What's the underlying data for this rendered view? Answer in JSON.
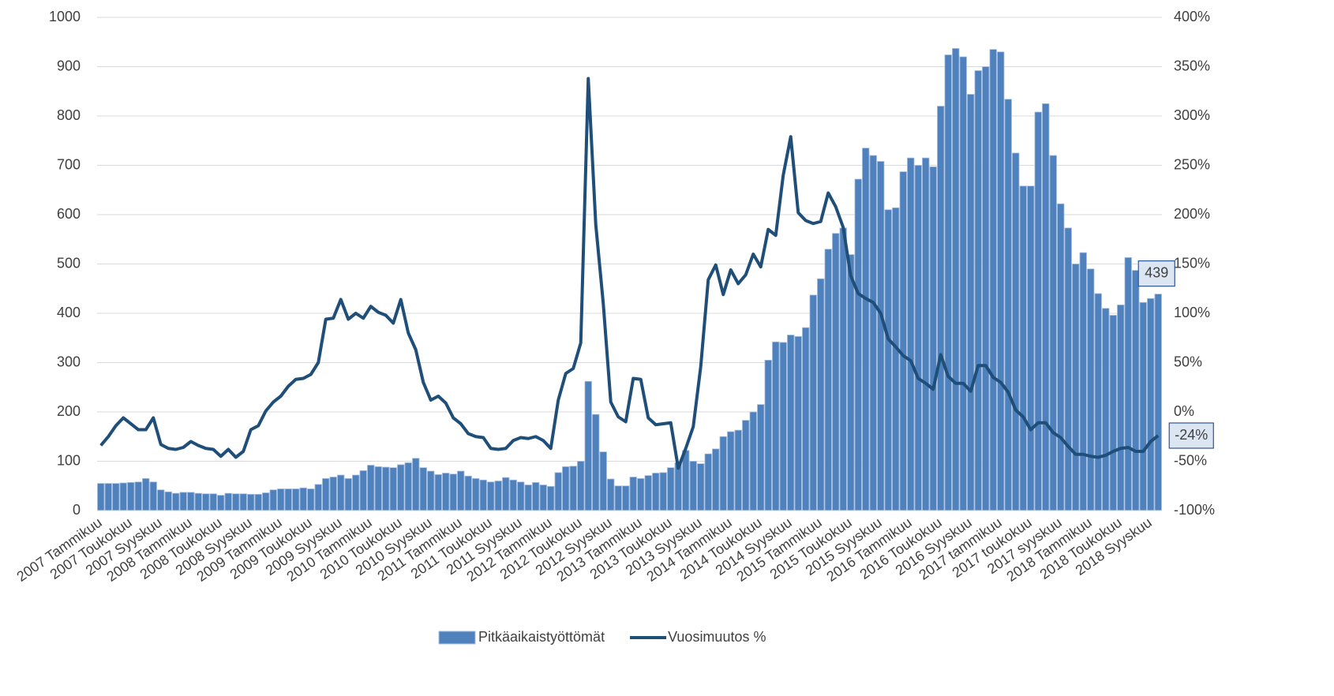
{
  "chart_data": {
    "type": "bar-line",
    "categories": [
      "2007 Tammikuu",
      null,
      null,
      null,
      "2007 Toukokuu",
      null,
      null,
      null,
      "2007 Syyskuu",
      null,
      null,
      null,
      "2008 Tammikuu",
      null,
      null,
      null,
      "2008 Toukokuu",
      null,
      null,
      null,
      "2008 Syyskuu",
      null,
      null,
      null,
      "2009 Tammikuu",
      null,
      null,
      null,
      "2009 Toukokuu",
      null,
      null,
      null,
      "2009 Syyskuu",
      null,
      null,
      null,
      "2010 Tammikuu",
      null,
      null,
      null,
      "2010 Toukokuu",
      null,
      null,
      null,
      "2010 Syyskuu",
      null,
      null,
      null,
      "2011 Tammikuu",
      null,
      null,
      null,
      "2011 Toukokuu",
      null,
      null,
      null,
      "2011 Syyskuu",
      null,
      null,
      null,
      "2012 Tammikuu",
      null,
      null,
      null,
      "2012 Toukokuu",
      null,
      null,
      null,
      "2012 Syyskuu",
      null,
      null,
      null,
      "2013 Tammikuu",
      null,
      null,
      null,
      "2013 Toukokuu",
      null,
      null,
      null,
      "2013 Syyskuu",
      null,
      null,
      null,
      "2014 Tammikuu",
      null,
      null,
      null,
      "2014 Toukokuu",
      null,
      null,
      null,
      "2014 Syyskuu",
      null,
      null,
      null,
      "2015 Tammikuu",
      null,
      null,
      null,
      "2015 Toukokuu",
      null,
      null,
      null,
      "2015 Syyskuu",
      null,
      null,
      null,
      "2016 Tammikuu",
      null,
      null,
      null,
      "2016 Toukokuu",
      null,
      null,
      null,
      "2016 Syyskuu",
      null,
      null,
      null,
      "2017 tammikuu",
      null,
      null,
      null,
      "2017 toukokuu",
      null,
      null,
      null,
      "2017 syyskuu",
      null,
      null,
      null,
      "2018 Tammikuu",
      null,
      null,
      null,
      "2018 Toukokuu",
      null,
      null,
      null,
      "2018 Syyskuu",
      null
    ],
    "series": [
      {
        "name": "Pitkäaikaistyöttömät",
        "type": "bar",
        "color": "#4f81bd",
        "values": [
          55,
          55,
          55,
          56,
          57,
          58,
          65,
          58,
          42,
          38,
          35,
          37,
          37,
          35,
          34,
          34,
          31,
          35,
          34,
          34,
          33,
          33,
          36,
          42,
          44,
          44,
          44,
          46,
          44,
          53,
          65,
          68,
          72,
          65,
          72,
          81,
          92,
          89,
          88,
          87,
          93,
          97,
          106,
          87,
          80,
          73,
          76,
          74,
          80,
          70,
          65,
          62,
          58,
          60,
          67,
          62,
          58,
          52,
          57,
          52,
          49,
          77,
          89,
          90,
          100,
          262,
          195,
          119,
          64,
          50,
          50,
          68,
          65,
          71,
          76,
          77,
          87,
          97,
          122,
          100,
          95,
          115,
          125,
          150,
          160,
          163,
          183,
          200,
          215,
          305,
          342,
          341,
          356,
          353,
          371,
          437,
          470,
          530,
          562,
          573,
          519,
          672,
          735,
          720,
          708,
          610,
          614,
          687,
          715,
          700,
          715,
          697,
          820,
          924,
          937,
          920,
          844,
          892,
          900,
          935,
          930,
          834,
          725,
          658,
          658,
          808,
          825,
          720,
          622,
          573,
          500,
          523,
          490,
          440,
          410,
          396,
          417,
          513,
          487,
          422,
          430,
          439
        ],
        "value_labels": {
          "141": "439"
        }
      },
      {
        "name": "Vuosimuutos %",
        "type": "line",
        "axis": "y2",
        "color": "#1f4e79",
        "values": [
          -34,
          -25,
          -14,
          -6,
          -12,
          -18,
          -18,
          -6,
          -33,
          -37,
          -38,
          -36,
          -30,
          -34,
          -37,
          -38,
          -45,
          -38,
          -46,
          -40,
          -18,
          -14,
          1,
          10,
          16,
          26,
          33,
          34,
          38,
          50,
          94,
          95,
          114,
          94,
          100,
          95,
          107,
          101,
          98,
          90,
          114,
          80,
          63,
          30,
          12,
          16,
          9,
          -6,
          -12,
          -22,
          -25,
          -26,
          -37,
          -38,
          -37,
          -29,
          -26,
          -27,
          -25,
          -29,
          -37,
          12,
          39,
          44,
          70,
          338,
          190,
          110,
          10,
          -5,
          -10,
          34,
          33,
          -6,
          -13,
          -12,
          -11,
          -57,
          -37,
          -15,
          46,
          134,
          149,
          119,
          144,
          130,
          139,
          160,
          147,
          185,
          179,
          240,
          279,
          202,
          194,
          191,
          193,
          222,
          208,
          187,
          138,
          120,
          115,
          111,
          100,
          74,
          66,
          57,
          52,
          34,
          29,
          23,
          58,
          36,
          29,
          29,
          21,
          47,
          47,
          35,
          30,
          20,
          2,
          -5,
          -18,
          -11,
          -11,
          -21,
          -26,
          -35,
          -43,
          -43,
          -45,
          -46,
          -44,
          -40,
          -37,
          -36,
          -40,
          -40,
          -30,
          -24
        ],
        "value_labels": {
          "141": "-24%"
        }
      }
    ],
    "ylim": [
      0,
      1000
    ],
    "yticks": [
      0,
      100,
      200,
      300,
      400,
      500,
      600,
      700,
      800,
      900,
      1000
    ],
    "y2lim": [
      -100,
      400
    ],
    "y2ticks": [
      {
        "value": -100,
        "label": "-100%"
      },
      {
        "value": -50,
        "label": "-50%"
      },
      {
        "value": 0,
        "label": "0%"
      },
      {
        "value": 50,
        "label": "50%"
      },
      {
        "value": 100,
        "label": "100%"
      },
      {
        "value": 150,
        "label": "150%"
      },
      {
        "value": 200,
        "label": "200%"
      },
      {
        "value": 250,
        "label": "250%"
      },
      {
        "value": 300,
        "label": "300%"
      },
      {
        "value": 350,
        "label": "350%"
      },
      {
        "value": 400,
        "label": "400%"
      }
    ],
    "grid": true,
    "legend": "bottom"
  }
}
